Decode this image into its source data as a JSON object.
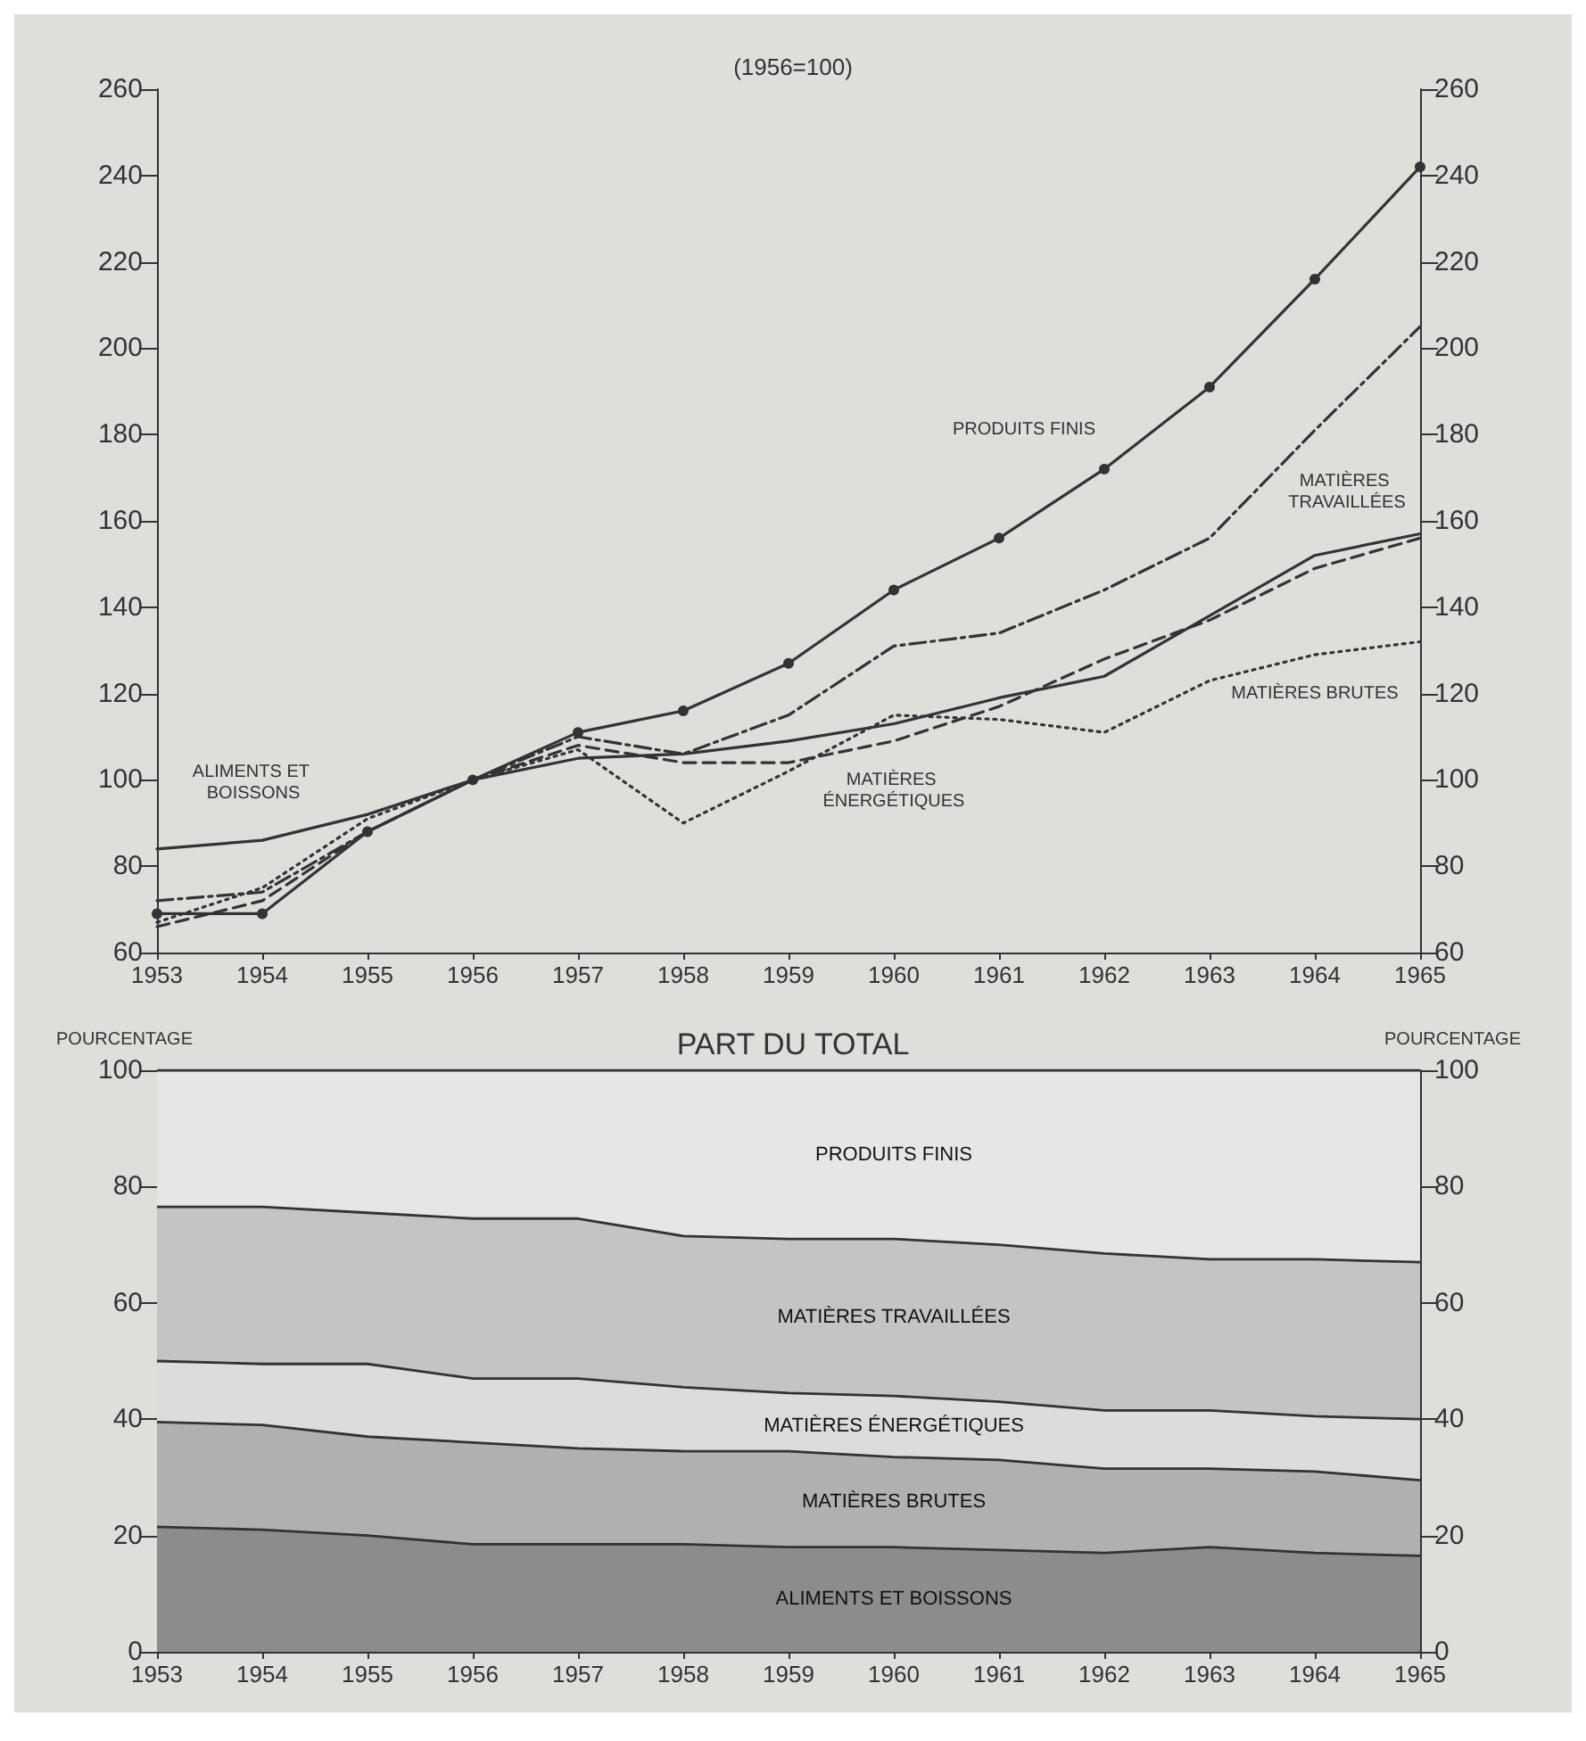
{
  "chart_data": [
    {
      "type": "line",
      "subtitle": "(1956=100)",
      "categories": [
        "1953",
        "1954",
        "1955",
        "1956",
        "1957",
        "1958",
        "1959",
        "1960",
        "1961",
        "1962",
        "1963",
        "1964",
        "1965"
      ],
      "series": [
        {
          "name": "PRODUITS FINIS",
          "color": "#333333",
          "line_style": "solid",
          "marker": "circle",
          "values": [
            69,
            69,
            88,
            100,
            111,
            116,
            127,
            144,
            156,
            172,
            191,
            216,
            242
          ]
        },
        {
          "name": "MATIÈRES TRAVAILLÉES",
          "color": "#333333",
          "line_style": "dashdot",
          "marker": "none",
          "values": [
            72,
            74,
            88,
            100,
            110,
            106,
            115,
            131,
            134,
            144,
            156,
            181,
            205
          ]
        },
        {
          "name": "MATIÈRES ÉNERGÉTIQUES",
          "color": "#333333",
          "line_style": "dashed",
          "marker": "none",
          "values": [
            66,
            72,
            88,
            100,
            108,
            104,
            104,
            109,
            117,
            128,
            137,
            149,
            156
          ]
        },
        {
          "name": "ALIMENTS ET BOISSONS",
          "color": "#333333",
          "line_style": "solid",
          "marker": "none",
          "values": [
            84,
            86,
            92,
            100,
            105,
            106,
            109,
            113,
            119,
            124,
            138,
            152,
            157
          ]
        },
        {
          "name": "MATIÈRES BRUTES",
          "color": "#333333",
          "line_style": "dotted",
          "marker": "none",
          "values": [
            67,
            75,
            91,
            100,
            107,
            90,
            102,
            115,
            114,
            111,
            123,
            129,
            132
          ]
        }
      ],
      "ylim": [
        60,
        260
      ],
      "yticks": [
        60,
        80,
        100,
        120,
        140,
        160,
        180,
        200,
        220,
        240,
        260
      ],
      "y2lim": [
        60,
        260
      ],
      "y2ticks": [
        60,
        80,
        100,
        120,
        140,
        160,
        180,
        200,
        220,
        240,
        260
      ],
      "grid": false,
      "legend": false
    },
    {
      "type": "area",
      "title": "PART DU TOTAL",
      "ylabel": "POURCENTAGE",
      "y2label": "POURCENTAGE",
      "stacked": true,
      "categories": [
        "1953",
        "1954",
        "1955",
        "1956",
        "1957",
        "1958",
        "1959",
        "1960",
        "1961",
        "1962",
        "1963",
        "1964",
        "1965"
      ],
      "series": [
        {
          "name": "ALIMENTS ET BOISSONS",
          "color": "#8c8c8a",
          "values": [
            21.5,
            21,
            20,
            18.5,
            18.5,
            18.5,
            18,
            18,
            17.5,
            17,
            18,
            17,
            16.5
          ]
        },
        {
          "name": "MATIÈRES BRUTES",
          "color": "#b0b0ae",
          "values": [
            18,
            18,
            17,
            17.5,
            16.5,
            16,
            16.5,
            15.5,
            15.5,
            14.5,
            13.5,
            14,
            13
          ]
        },
        {
          "name": "MATIÈRES ÉNERGÉTIQUES",
          "color": "#dcdcda",
          "values": [
            10.5,
            10.5,
            12.5,
            11,
            12,
            11,
            10,
            10.5,
            10,
            10,
            10,
            9.5,
            10.5
          ]
        },
        {
          "name": "MATIÈRES TRAVAILLÉES",
          "color": "#c4c4c2",
          "values": [
            26.5,
            27,
            26,
            27.5,
            27.5,
            26,
            26.5,
            27,
            27,
            27,
            26,
            27,
            27
          ]
        },
        {
          "name": "PRODUITS FINIS",
          "color": "#e6e6e4",
          "values": [
            23.5,
            23.5,
            24.5,
            25.5,
            25.5,
            28.5,
            29,
            29,
            30,
            31.5,
            32.5,
            32.5,
            33
          ]
        }
      ],
      "ylim": [
        0,
        100
      ],
      "yticks": [
        0,
        20,
        40,
        60,
        80,
        100
      ],
      "y2lim": [
        0,
        100
      ],
      "y2ticks": [
        0,
        20,
        40,
        60,
        80,
        100
      ],
      "grid": false,
      "legend": false
    }
  ]
}
